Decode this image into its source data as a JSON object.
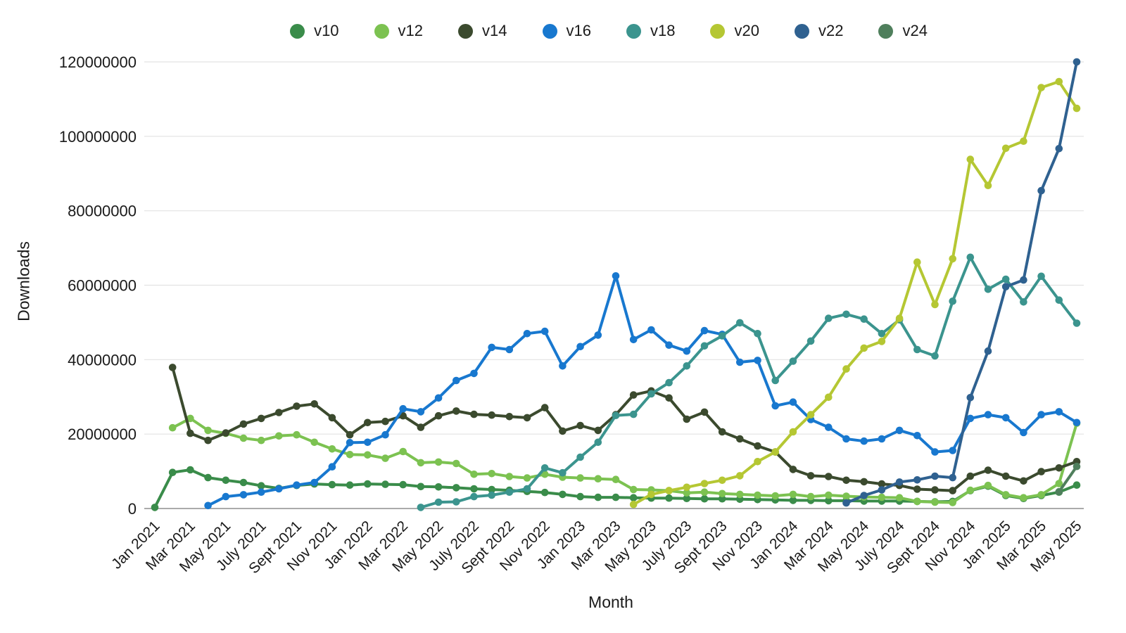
{
  "chart_data": {
    "type": "line",
    "title": "",
    "xlabel": "Month",
    "ylabel": "Downloads",
    "legend_position": "top-center",
    "grid": "horizontal",
    "ylim": [
      0,
      120000000
    ],
    "y_ticks": [
      0,
      20000000,
      40000000,
      60000000,
      80000000,
      100000000,
      120000000
    ],
    "x_tick_labels": [
      "Jan 2021",
      "Mar 2021",
      "May 2021",
      "July 2021",
      "Sept 2021",
      "Nov 2021",
      "Jan 2022",
      "Mar 2022",
      "May 2022",
      "July 2022",
      "Sept 2022",
      "Nov 2022",
      "Jan 2023",
      "Mar 2023",
      "May 2023",
      "July 2023",
      "Sept 2023",
      "Nov 2023",
      "Jan 2024",
      "Mar 2024",
      "May 2024",
      "July 2024",
      "Sept 2024",
      "Nov 2024",
      "Jan 2025",
      "Mar 2025",
      "May 2025"
    ],
    "x_months": [
      "Jan 2021",
      "Feb 2021",
      "Mar 2021",
      "Apr 2021",
      "May 2021",
      "Jun 2021",
      "Jul 2021",
      "Aug 2021",
      "Sep 2021",
      "Oct 2021",
      "Nov 2021",
      "Dec 2021",
      "Jan 2022",
      "Feb 2022",
      "Mar 2022",
      "Apr 2022",
      "May 2022",
      "Jun 2022",
      "Jul 2022",
      "Aug 2022",
      "Sep 2022",
      "Oct 2022",
      "Nov 2022",
      "Dec 2022",
      "Jan 2023",
      "Feb 2023",
      "Mar 2023",
      "Apr 2023",
      "May 2023",
      "Jun 2023",
      "Jul 2023",
      "Aug 2023",
      "Sep 2023",
      "Oct 2023",
      "Nov 2023",
      "Dec 2023",
      "Jan 2024",
      "Feb 2024",
      "Mar 2024",
      "Apr 2024",
      "May 2024",
      "Jun 2024",
      "Jul 2024",
      "Aug 2024",
      "Sep 2024",
      "Oct 2024",
      "Nov 2024",
      "Dec 2024",
      "Jan 2025",
      "Feb 2025",
      "Mar 2025",
      "Apr 2025",
      "May 2025"
    ],
    "values_unit": "downloads",
    "value_scale": 1000000,
    "series": [
      {
        "name": "v10",
        "color": "#3a8c4a",
        "values": [
          0.3,
          9.7,
          10.4,
          8.3,
          7.6,
          7.0,
          6.1,
          5.4,
          6.2,
          6.6,
          6.4,
          6.3,
          6.6,
          6.5,
          6.4,
          5.9,
          5.8,
          5.6,
          5.3,
          5.1,
          4.9,
          4.6,
          4.3,
          3.8,
          3.2,
          3.0,
          3.0,
          2.9,
          2.8,
          2.8,
          2.7,
          2.6,
          2.6,
          2.5,
          2.4,
          2.3,
          2.2,
          2.2,
          2.1,
          2.1,
          2.0,
          2.0,
          2.0,
          1.9,
          1.8,
          1.9,
          4.8,
          6.0,
          3.5,
          2.7,
          3.5,
          4.4,
          6.3
        ]
      },
      {
        "name": "v12",
        "color": "#7cc251",
        "values": [
          null,
          21.7,
          24.2,
          21.0,
          20.2,
          18.9,
          18.3,
          19.5,
          19.8,
          17.8,
          16.0,
          14.5,
          14.4,
          13.5,
          15.3,
          12.3,
          12.5,
          12.1,
          9.2,
          9.4,
          8.6,
          8.2,
          9.2,
          8.4,
          8.2,
          8.0,
          7.8,
          5.1,
          5.0,
          4.8,
          4.2,
          4.4,
          4.0,
          3.8,
          3.6,
          3.4,
          3.8,
          3.2,
          3.6,
          3.3,
          3.1,
          3.0,
          2.9,
          1.9,
          1.7,
          1.6,
          4.9,
          6.2,
          3.7,
          2.9,
          3.7,
          6.7,
          22.9
        ]
      },
      {
        "name": "v14",
        "color": "#3b4a2e",
        "values": [
          null,
          37.9,
          20.2,
          18.3,
          20.3,
          22.7,
          24.2,
          25.8,
          27.5,
          28.1,
          24.4,
          19.8,
          23.1,
          23.4,
          24.9,
          21.8,
          24.9,
          26.2,
          25.3,
          25.1,
          24.7,
          24.4,
          27.1,
          20.8,
          22.3,
          21.0,
          25.2,
          30.5,
          31.6,
          29.7,
          24.0,
          25.9,
          20.6,
          18.7,
          16.8,
          15.2,
          10.5,
          8.8,
          8.6,
          7.6,
          7.2,
          6.6,
          6.2,
          5.2,
          5.0,
          4.8,
          8.7,
          10.3,
          8.7,
          7.4,
          9.9,
          10.9,
          12.6
        ]
      },
      {
        "name": "v16",
        "color": "#1878cf",
        "values": [
          null,
          null,
          null,
          0.8,
          3.2,
          3.7,
          4.4,
          5.3,
          6.3,
          7.0,
          11.2,
          17.7,
          17.8,
          19.8,
          26.8,
          26.0,
          29.7,
          34.4,
          36.3,
          43.3,
          42.7,
          47.0,
          47.6,
          38.3,
          43.5,
          46.6,
          62.5,
          45.4,
          48.0,
          43.9,
          42.3,
          47.8,
          46.8,
          39.3,
          39.8,
          27.6,
          28.6,
          23.9,
          21.8,
          18.7,
          18.1,
          18.7,
          21.0,
          19.6,
          15.2,
          15.6,
          24.2,
          25.2,
          24.4,
          20.4,
          25.2,
          26.0,
          23.1
        ]
      },
      {
        "name": "v18",
        "color": "#3b948e",
        "values": [
          null,
          null,
          null,
          null,
          null,
          null,
          null,
          null,
          null,
          null,
          null,
          null,
          null,
          null,
          null,
          0.3,
          1.7,
          1.8,
          3.2,
          3.6,
          4.4,
          5.3,
          10.9,
          9.6,
          13.8,
          17.8,
          25.0,
          25.3,
          30.8,
          33.8,
          38.3,
          43.7,
          46.4,
          49.9,
          47.0,
          34.4,
          39.6,
          45.0,
          51.1,
          52.2,
          50.9,
          47.0,
          50.7,
          42.7,
          41.0,
          55.7,
          67.5,
          58.9,
          61.6,
          55.5,
          62.4,
          56.0,
          49.8
        ]
      },
      {
        "name": "v20",
        "color": "#b5c733",
        "values": [
          null,
          null,
          null,
          null,
          null,
          null,
          null,
          null,
          null,
          null,
          null,
          null,
          null,
          null,
          null,
          null,
          null,
          null,
          null,
          null,
          null,
          null,
          null,
          null,
          null,
          null,
          null,
          1.1,
          3.8,
          4.8,
          5.7,
          6.7,
          7.6,
          8.8,
          12.6,
          15.2,
          20.6,
          25.2,
          29.9,
          37.5,
          43.1,
          44.9,
          51.1,
          66.2,
          54.8,
          67.1,
          93.8,
          86.8,
          96.8,
          98.7,
          113.1,
          114.7,
          107.5
        ]
      },
      {
        "name": "v22",
        "color": "#2f6190",
        "values": [
          null,
          null,
          null,
          null,
          null,
          null,
          null,
          null,
          null,
          null,
          null,
          null,
          null,
          null,
          null,
          null,
          null,
          null,
          null,
          null,
          null,
          null,
          null,
          null,
          null,
          null,
          null,
          null,
          null,
          null,
          null,
          null,
          null,
          null,
          null,
          null,
          null,
          null,
          null,
          1.5,
          3.5,
          5.0,
          7.1,
          7.7,
          8.7,
          8.3,
          29.8,
          42.3,
          59.6,
          61.4,
          85.4,
          96.7,
          120.0
        ]
      },
      {
        "name": "v24",
        "color": "#4f7f5c",
        "values": [
          null,
          null,
          null,
          null,
          null,
          null,
          null,
          null,
          null,
          null,
          null,
          null,
          null,
          null,
          null,
          null,
          null,
          null,
          null,
          null,
          null,
          null,
          null,
          null,
          null,
          null,
          null,
          null,
          null,
          null,
          null,
          null,
          null,
          null,
          null,
          null,
          null,
          null,
          null,
          null,
          null,
          null,
          null,
          null,
          null,
          null,
          null,
          null,
          null,
          null,
          null,
          4.5,
          11.3
        ]
      }
    ]
  }
}
